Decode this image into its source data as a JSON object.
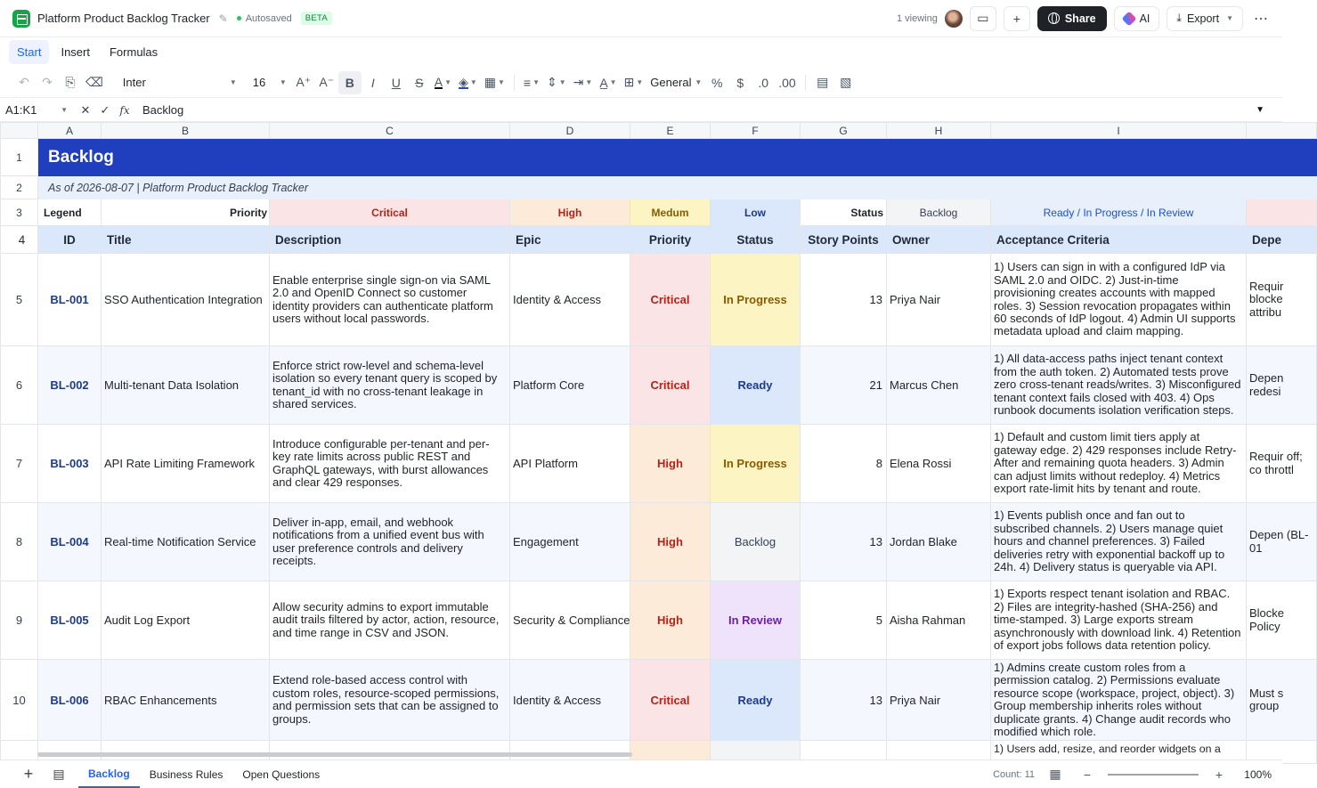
{
  "titlebar": {
    "title": "Platform Product Backlog Tracker",
    "saved": "Autosaved",
    "beta": "BETA",
    "viewing": "1 viewing",
    "share": "Share",
    "ai": "AI",
    "export": "Export"
  },
  "menu": [
    "Start",
    "Insert",
    "Formulas"
  ],
  "toolbar": {
    "font": "Inter",
    "size": "16",
    "format": "General"
  },
  "formula": {
    "range": "A1:K1",
    "fx": "fx",
    "value": "Backlog"
  },
  "columns": [
    "A",
    "B",
    "C",
    "D",
    "E",
    "F",
    "G",
    "H",
    "I",
    ""
  ],
  "sheet": {
    "banner": "Backlog",
    "subtitle": "As of 2026-08-07  |  Platform Product Backlog Tracker",
    "legend": {
      "label": "Legend",
      "priority": "Priority",
      "critical": "Critical",
      "high": "High",
      "medium": "Medum",
      "low": "Low",
      "status": "Status",
      "backlog": "Backlog",
      "statuses": "Ready / In Progress / In Review"
    },
    "headers": {
      "id": "ID",
      "title": "Title",
      "description": "Description",
      "epic": "Epic",
      "priority": "Priority",
      "status": "Status",
      "points": "Story Points",
      "owner": "Owner",
      "criteria": "Acceptance Criteria",
      "deps": "Depe"
    },
    "rows": [
      {
        "num": "5",
        "id": "BL-001",
        "title": "SSO Authentication Integration",
        "description": "Enable enterprise single sign-on via SAML 2.0 and OpenID Connect so customer identity providers can authenticate platform users without local passwords.",
        "epic": "Identity & Access",
        "priority": "Critical",
        "status": "In Progress",
        "points": "13",
        "owner": "Priya Nair",
        "criteria": "1) Users can sign in with a configured IdP via SAML 2.0 and OIDC. 2) Just-in-time provisioning creates accounts with mapped roles. 3) Session revocation propagates within 60 seconds of IdP logout. 4) Admin UI supports metadata upload and claim mapping.",
        "deps": "Requir blocke attribu"
      },
      {
        "num": "6",
        "id": "BL-002",
        "title": "Multi-tenant Data Isolation",
        "description": "Enforce strict row-level and schema-level isolation so every tenant query is scoped by tenant_id with no cross-tenant leakage in shared services.",
        "epic": "Platform Core",
        "priority": "Critical",
        "status": "Ready",
        "points": "21",
        "owner": "Marcus Chen",
        "criteria": "1) All data-access paths inject tenant context from the auth token. 2) Automated tests prove zero cross-tenant reads/writes. 3) Misconfigured tenant context fails closed with 403. 4) Ops runbook documents isolation verification steps.",
        "deps": "Depen redesi"
      },
      {
        "num": "7",
        "id": "BL-003",
        "title": "API Rate Limiting Framework",
        "description": "Introduce configurable per-tenant and per-key rate limits across public REST and GraphQL gateways, with burst allowances and clear 429 responses.",
        "epic": "API Platform",
        "priority": "High",
        "status": "In Progress",
        "points": "8",
        "owner": "Elena Rossi",
        "criteria": "1) Default and custom limit tiers apply at gateway edge. 2) 429 responses include Retry-After and remaining quota headers. 3) Admin can adjust limits without redeploy. 4) Metrics export rate-limit hits by tenant and route.",
        "deps": "Requir off; co throttl"
      },
      {
        "num": "8",
        "id": "BL-004",
        "title": "Real-time Notification Service",
        "description": "Deliver in-app, email, and webhook notifications from a unified event bus with user preference controls and delivery receipts.",
        "epic": "Engagement",
        "priority": "High",
        "status": "Backlog",
        "points": "13",
        "owner": "Jordan Blake",
        "criteria": "1) Events publish once and fan out to subscribed channels. 2) Users manage quiet hours and channel preferences. 3) Failed deliveries retry with exponential backoff up to 24h. 4) Delivery status is queryable via API.",
        "deps": "Depen (BL-01"
      },
      {
        "num": "9",
        "id": "BL-005",
        "title": "Audit Log Export",
        "description": "Allow security admins to export immutable audit trails filtered by actor, action, resource, and time range in CSV and JSON.",
        "epic": "Security & Compliance",
        "priority": "High",
        "status": "In Review",
        "points": "5",
        "owner": "Aisha Rahman",
        "criteria": "1) Exports respect tenant isolation and RBAC. 2) Files are integrity-hashed (SHA-256) and time-stamped. 3) Large exports stream asynchronously with download link. 4) Retention of export jobs follows data retention policy.",
        "deps": "Blocke Policy"
      },
      {
        "num": "10",
        "id": "BL-006",
        "title": "RBAC Enhancements",
        "description": "Extend role-based access control with custom roles, resource-scoped permissions, and permission sets that can be assigned to groups.",
        "epic": "Identity & Access",
        "priority": "Critical",
        "status": "Ready",
        "points": "13",
        "owner": "Priya Nair",
        "criteria": "1) Admins create custom roles from a permission catalog. 2) Permissions evaluate resource scope (workspace, project, object). 3) Group membership inherits roles without duplicate grants. 4) Change audit records who modified which role.",
        "deps": "Must s group"
      }
    ],
    "partial_criteria": "1) Users add, resize, and reorder widgets on a"
  },
  "bottom": {
    "tabs": [
      "Backlog",
      "Business Rules",
      "Open Questions"
    ],
    "count": "Count: 11",
    "zoom": "100%"
  }
}
